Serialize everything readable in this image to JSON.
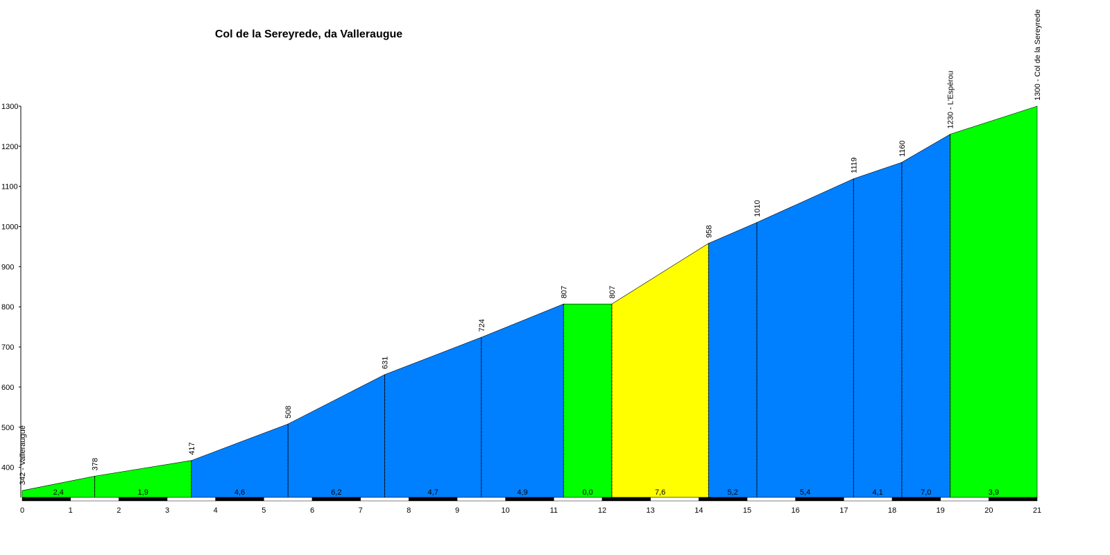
{
  "chart_data": {
    "type": "area",
    "title": "Col de la Sereyrede, da Valleraugue",
    "x": [
      0,
      1.5,
      3.5,
      5.5,
      7.5,
      9.5,
      11.2,
      12.2,
      14.2,
      15.2,
      17.2,
      18.2,
      19.2,
      21
    ],
    "series": [
      {
        "values": [
          342,
          378,
          417,
          508,
          631,
          724,
          807,
          807,
          958,
          1010,
          1119,
          1160,
          1230,
          1300
        ],
        "value_labels": [
          "342 - Valleraugue",
          "378",
          "417",
          "508",
          "631",
          "724",
          "807",
          "807",
          "958",
          "1010",
          "1119",
          "1160",
          "1230 - L'Espérou",
          "1300 - Col de la Sereyrede"
        ]
      }
    ],
    "segments": {
      "values": [
        2.4,
        1.9,
        4.6,
        6.2,
        4.7,
        4.9,
        0.0,
        7.6,
        5.2,
        5.4,
        4.1,
        7.0,
        3.9
      ],
      "value_labels": [
        "2,4",
        "1,9",
        "4,6",
        "6,2",
        "4,7",
        "4,9",
        "0,0",
        "7,6",
        "5,2",
        "5,4",
        "4,1",
        "7,0",
        "3,9"
      ],
      "colors": [
        "#00ff00",
        "#00ff00",
        "#0080ff",
        "#0080ff",
        "#0080ff",
        "#0080ff",
        "#00ff00",
        "#ffff00",
        "#0080ff",
        "#0080ff",
        "#0080ff",
        "#0080ff",
        "#00ff00"
      ]
    },
    "xlim": [
      0,
      21
    ],
    "ylim": [
      325,
      1300
    ],
    "xticks": [
      0,
      1,
      2,
      3,
      4,
      5,
      6,
      7,
      8,
      9,
      10,
      11,
      12,
      13,
      14,
      15,
      16,
      17,
      18,
      19,
      20,
      21
    ],
    "yticks": [
      400,
      500,
      600,
      700,
      800,
      900,
      1000,
      1100,
      1200,
      1300
    ]
  }
}
